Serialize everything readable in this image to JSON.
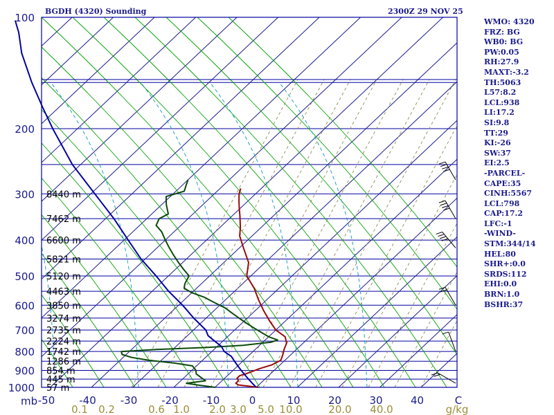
{
  "header": {
    "station": "BGDH (4320) Sounding",
    "time": "2300Z 29 NOV 25"
  },
  "chart_data": {
    "type": "line",
    "pressure_ticks": [
      "100",
      "200",
      "300",
      "400",
      "500",
      "600",
      "700",
      "800",
      "900",
      "1000"
    ],
    "pressure_unit": "mb",
    "temperature_ticks": [
      "-50",
      "-40",
      "-30",
      "-20",
      "-10",
      "0",
      "10",
      "20",
      "30",
      "40",
      "C"
    ],
    "mixing_ratio_ticks": [
      "0.1",
      "0.2",
      "0.6",
      "1.0",
      "2.0",
      "3.0",
      "5.0",
      "10.0",
      "20.0",
      "40.0",
      "g/kg"
    ],
    "height_labels": [
      {
        "p": 300,
        "label": "8440 m"
      },
      {
        "p": 350,
        "label": "7462 m"
      },
      {
        "p": 400,
        "label": "6600 m"
      },
      {
        "p": 450,
        "label": "5821 m"
      },
      {
        "p": 500,
        "label": "5120 m"
      },
      {
        "p": 550,
        "label": "4463 m"
      },
      {
        "p": 600,
        "label": "3850 m"
      },
      {
        "p": 650,
        "label": "3274 m"
      },
      {
        "p": 700,
        "label": "2735 m"
      },
      {
        "p": 750,
        "label": "2224 m"
      },
      {
        "p": 800,
        "label": "1742 m"
      },
      {
        "p": 850,
        "label": "1286 m"
      },
      {
        "p": 900,
        "label": "854 m"
      },
      {
        "p": 950,
        "label": "445 m"
      },
      {
        "p": 1000,
        "label": "57 m"
      }
    ],
    "series": [
      {
        "color": "#9b0a0a",
        "points": [
          [
            1000,
            0.5
          ],
          [
            985,
            -5
          ],
          [
            975,
            -6
          ],
          [
            960,
            -6
          ],
          [
            945,
            -7
          ],
          [
            930,
            -7
          ],
          [
            920,
            -6
          ],
          [
            905,
            -5
          ],
          [
            890,
            -4
          ],
          [
            870,
            -2
          ],
          [
            845,
            -1
          ],
          [
            815,
            -2
          ],
          [
            790,
            -3
          ],
          [
            760,
            -4
          ],
          [
            730,
            -6
          ],
          [
            700,
            -10
          ],
          [
            660,
            -14
          ],
          [
            620,
            -18
          ],
          [
            580,
            -22
          ],
          [
            540,
            -26
          ],
          [
            500,
            -31
          ],
          [
            460,
            -34
          ],
          [
            420,
            -39
          ],
          [
            390,
            -43
          ],
          [
            370,
            -45
          ],
          [
            345,
            -48
          ],
          [
            330,
            -50
          ],
          [
            315,
            -52
          ],
          [
            300,
            -54
          ],
          [
            290,
            -55
          ]
        ]
      },
      {
        "color": "#0a4a0a",
        "points": [
          [
            1000,
            -10
          ],
          [
            985,
            -15
          ],
          [
            975,
            -18
          ],
          [
            960,
            -14
          ],
          [
            940,
            -16
          ],
          [
            920,
            -18
          ],
          [
            900,
            -19
          ],
          [
            875,
            -21
          ],
          [
            860,
            -26
          ],
          [
            845,
            -33
          ],
          [
            830,
            -38
          ],
          [
            815,
            -41
          ],
          [
            800,
            -42
          ],
          [
            790,
            -34
          ],
          [
            780,
            -22
          ],
          [
            770,
            -14
          ],
          [
            755,
            -8
          ],
          [
            745,
            -7
          ],
          [
            730,
            -10
          ],
          [
            710,
            -13
          ],
          [
            690,
            -16
          ],
          [
            670,
            -19
          ],
          [
            650,
            -22
          ],
          [
            630,
            -25
          ],
          [
            610,
            -28
          ],
          [
            590,
            -32
          ],
          [
            570,
            -36
          ],
          [
            555,
            -40
          ],
          [
            540,
            -43
          ],
          [
            525,
            -44
          ],
          [
            500,
            -45
          ],
          [
            480,
            -48
          ],
          [
            460,
            -51
          ],
          [
            440,
            -54
          ],
          [
            420,
            -57
          ],
          [
            400,
            -60
          ],
          [
            380,
            -63
          ],
          [
            365,
            -66
          ],
          [
            350,
            -67
          ],
          [
            340,
            -66
          ],
          [
            320,
            -69
          ],
          [
            305,
            -71
          ],
          [
            295,
            -68
          ],
          [
            285,
            -69
          ],
          [
            275,
            -70
          ]
        ]
      },
      {
        "color": "#0000a0",
        "points": [
          [
            1000,
            0
          ],
          [
            975,
            -2
          ],
          [
            950,
            -4
          ],
          [
            925,
            -6
          ],
          [
            900,
            -8
          ],
          [
            875,
            -10
          ],
          [
            850,
            -12
          ],
          [
            825,
            -14
          ],
          [
            800,
            -17
          ],
          [
            775,
            -19
          ],
          [
            750,
            -22
          ],
          [
            725,
            -25
          ],
          [
            700,
            -27
          ],
          [
            650,
            -33
          ],
          [
            600,
            -39
          ],
          [
            550,
            -46
          ],
          [
            500,
            -53
          ],
          [
            450,
            -61
          ],
          [
            400,
            -69
          ],
          [
            350,
            -78
          ],
          [
            300,
            -89
          ],
          [
            250,
            -102
          ],
          [
            200,
            -116
          ],
          [
            175,
            -124
          ],
          [
            150,
            -133
          ],
          [
            125,
            -143
          ],
          [
            110,
            -149
          ],
          [
            102,
            -153
          ]
        ]
      }
    ],
    "wind_barbs": [
      {
        "p": 275,
        "dir": 330,
        "kt": 40
      },
      {
        "p": 350,
        "dir": 330,
        "kt": 35
      },
      {
        "p": 420,
        "dir": 320,
        "kt": 40
      },
      {
        "p": 600,
        "dir": 330,
        "kt": 15
      },
      {
        "p": 800,
        "dir": 340,
        "kt": 10
      },
      {
        "p": 975,
        "dir": 300,
        "kt": 15
      }
    ]
  },
  "stats": [
    "WMO: 4320",
    "FRZ: BG",
    "WB0: BG",
    "PW:0.05",
    "RH:27.9",
    "MAXT:-3.2",
    "TH:5063",
    "L57:8.2",
    "LCL:938",
    "LI:17.2",
    "SI:9.8",
    "TT:29",
    "KI:-26",
    "SW:37",
    "EI:2.5",
    "-PARCEL-",
    "CAPE:35",
    "CINH:5567",
    "LCL:798",
    "CAP:17.2",
    "LFC:-1",
    "-WIND-",
    "STM:344/14",
    "HEL:80",
    "SHR+:0.0",
    "SRDS:112",
    "EHI:0.0",
    "BRN:1.0",
    "BSHR:37"
  ],
  "colors": {
    "frame": "#0000a0",
    "isobar": "#0000a0",
    "isotherm": "#1a1a8c",
    "dry_adiabat": "#00a000",
    "moist_adiabat": "#20a0c0",
    "mixing_ratio": "#8c8c50",
    "label_blue": "#1a1a8c",
    "label_olive": "#9b8f3a"
  }
}
